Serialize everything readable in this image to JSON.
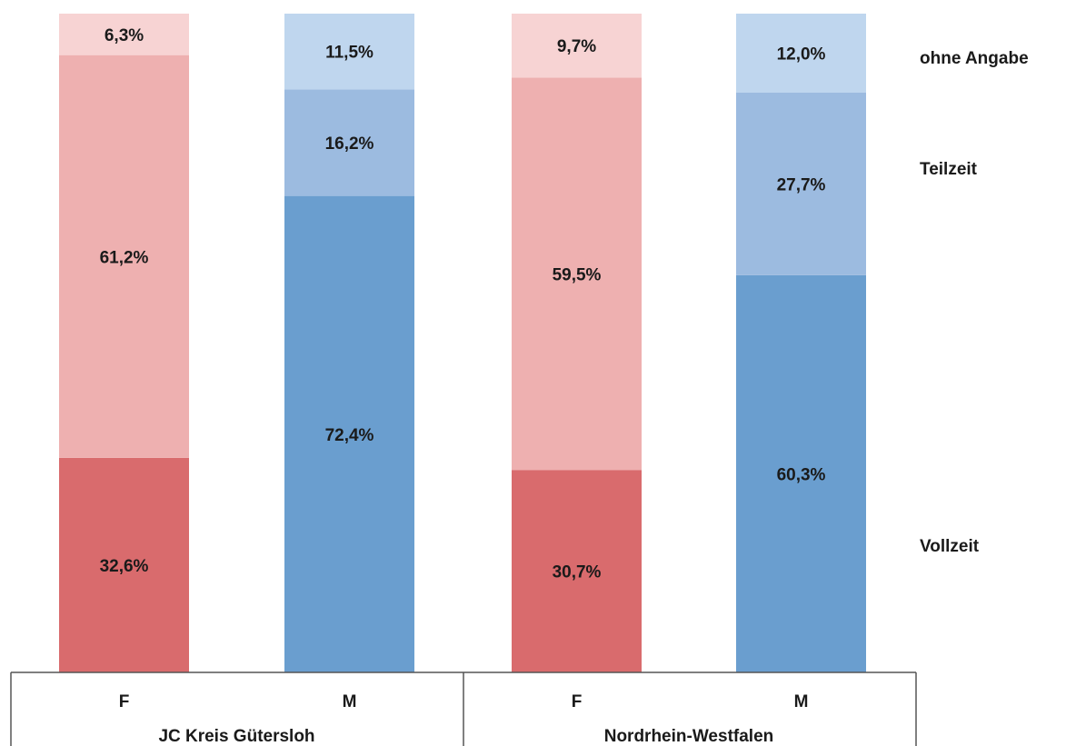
{
  "chart_data": {
    "type": "bar",
    "stacked": true,
    "categories": [
      "F",
      "M",
      "F",
      "M"
    ],
    "groups": [
      {
        "label": "JC Kreis Gütersloh",
        "categories": [
          0,
          1
        ]
      },
      {
        "label": "Nordrhein-Westfalen",
        "categories": [
          2,
          3
        ]
      }
    ],
    "series": [
      {
        "name": "Vollzeit",
        "values": [
          32.6,
          72.4,
          30.7,
          60.3
        ],
        "labels": [
          "32,6%",
          "72,4%",
          "30,7%",
          "60,3%"
        ],
        "colors": [
          "#d96b6d",
          "#6a9ecf",
          "#d96b6d",
          "#6a9ecf"
        ]
      },
      {
        "name": "Teilzeit",
        "values": [
          61.2,
          16.2,
          59.5,
          27.7
        ],
        "labels": [
          "61,2%",
          "16,2%",
          "59,5%",
          "27,7%"
        ],
        "colors": [
          "#eeb0b0",
          "#9cbbe0",
          "#eeb0b0",
          "#9cbbe0"
        ]
      },
      {
        "name": "ohne Angabe",
        "values": [
          6.3,
          11.5,
          9.7,
          12.0
        ],
        "labels": [
          "6,3%",
          "11,5%",
          "9,7%",
          "12,0%"
        ],
        "colors": [
          "#f7d3d3",
          "#bfd6ee",
          "#f7d3d3",
          "#bfd6ee"
        ]
      }
    ],
    "ylim": [
      0,
      100
    ],
    "grid": false,
    "legend_position": "right"
  }
}
